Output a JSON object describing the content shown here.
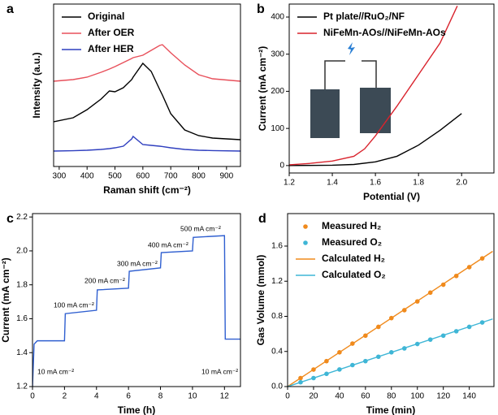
{
  "chart_data": [
    {
      "type": "line",
      "panel_label": "a",
      "x_label": "Raman shift (cm⁻²)",
      "y_label": "Intensity (a.u.)",
      "legend": "upper left",
      "xlim": [
        280,
        950
      ],
      "xticks": [
        300,
        400,
        500,
        600,
        700,
        800,
        900
      ],
      "ylim": [
        0,
        100
      ],
      "x": [
        280,
        350,
        400,
        450,
        480,
        500,
        530,
        560,
        565,
        600,
        630,
        660,
        670,
        700,
        750,
        800,
        850,
        950
      ],
      "series": [
        {
          "name": "Original",
          "color": "#000000",
          "values": [
            27.5,
            30,
            35,
            41.5,
            46.5,
            46,
            48.5,
            53.5,
            55,
            63.5,
            58.5,
            47.5,
            44,
            32.5,
            22.5,
            19,
            17.5,
            16.5
          ]
        },
        {
          "name": "After OER",
          "color": "#e8505b",
          "values": [
            52.5,
            53.5,
            55,
            58,
            60,
            61.5,
            64,
            66.5,
            67,
            68.5,
            71.5,
            74.5,
            75,
            70,
            62.5,
            56.5,
            54,
            52.5
          ]
        },
        {
          "name": "After HER",
          "color": "#2f3fbf",
          "values": [
            9.5,
            9.7,
            10,
            10.5,
            11,
            11.5,
            12.5,
            17,
            18.5,
            13.5,
            13,
            12.5,
            12.3,
            11.5,
            10.5,
            10,
            9.8,
            9.5
          ]
        }
      ]
    },
    {
      "type": "line",
      "panel_label": "b",
      "x_label": "Potential (V)",
      "y_label": "Current (mA cm⁻²)",
      "legend": "upper left",
      "xlim": [
        1.2,
        2.15
      ],
      "xticks": [
        1.2,
        1.4,
        1.6,
        1.8,
        {
          "value": 2,
          "label": "2.0"
        }
      ],
      "ylim": [
        -20,
        435
      ],
      "yticks": [
        0,
        100,
        200,
        300,
        400
      ],
      "series": [
        {
          "name": "Pt plate//RuO₂/NF",
          "color": "#000000",
          "x": [
            1.2,
            1.4,
            1.5,
            1.6,
            1.7,
            1.8,
            1.9,
            2.0
          ],
          "values": [
            0,
            1,
            3,
            10,
            25,
            55,
            95,
            140
          ]
        },
        {
          "name": "NiFeMn-AOs//NiFeMn-AOs",
          "color": "#d9232d",
          "x": [
            1.2,
            1.3,
            1.4,
            1.5,
            1.55,
            1.6,
            1.7,
            1.8,
            1.9,
            1.98
          ],
          "values": [
            2,
            6,
            12,
            25,
            45,
            80,
            160,
            245,
            330,
            430
          ]
        }
      ]
    },
    {
      "type": "line",
      "panel_label": "c",
      "x_label": "Time (h)",
      "y_label": "Current (mA cm⁻²)",
      "xlim": [
        0,
        13
      ],
      "xticks": [
        0,
        2,
        4,
        6,
        8,
        10,
        12
      ],
      "ylim": [
        1.2,
        2.22
      ],
      "yticks": [
        1.2,
        1.4,
        1.6,
        1.8,
        {
          "value": 2,
          "label": "2.0"
        },
        2.2
      ],
      "x": [
        0,
        0.1,
        0.3,
        2,
        2.05,
        4,
        4.05,
        6,
        6.05,
        8,
        8.05,
        10,
        10.05,
        12,
        12.05,
        13
      ],
      "series": [
        {
          "color": "#2f5fd0",
          "values": [
            1.2,
            1.45,
            1.47,
            1.47,
            1.63,
            1.65,
            1.77,
            1.78,
            1.88,
            1.9,
            1.99,
            2.0,
            2.08,
            2.09,
            1.48,
            1.48
          ]
        }
      ],
      "annotations": [
        "10 mA cm⁻²",
        "100 mA cm⁻²",
        "200 mA cm⁻²",
        "300 mA cm⁻²",
        "400 mA cm⁻²",
        "500 mA cm⁻²",
        "10 mA cm⁻²"
      ]
    },
    {
      "type": "line",
      "panel_label": "d",
      "x_label": "Time (min)",
      "y_label": "Gas Volume (mmol)",
      "legend": "upper left",
      "xlim": [
        0,
        159
      ],
      "xticks": [
        0,
        20,
        40,
        60,
        80,
        100,
        120,
        140
      ],
      "ylim": [
        0,
        1.97
      ],
      "yticks": [
        {
          "value": 0,
          "label": "0.0"
        },
        0.4,
        0.8,
        1.2,
        1.6
      ],
      "series": [
        {
          "name": "Measured H₂",
          "color": "#f08a1c",
          "style": "marker",
          "x": [
            10,
            20,
            30,
            40,
            50,
            60,
            70,
            80,
            90,
            100,
            110,
            120,
            130,
            140,
            150
          ],
          "values": [
            0.097,
            0.194,
            0.29,
            0.39,
            0.49,
            0.58,
            0.68,
            0.78,
            0.87,
            0.97,
            1.07,
            1.16,
            1.26,
            1.36,
            1.46
          ]
        },
        {
          "name": "Measured O₂",
          "color": "#3fb6d6",
          "style": "marker",
          "x": [
            10,
            20,
            30,
            40,
            50,
            60,
            70,
            80,
            90,
            100,
            110,
            120,
            130,
            140,
            150
          ],
          "values": [
            0.049,
            0.097,
            0.145,
            0.195,
            0.245,
            0.29,
            0.34,
            0.39,
            0.435,
            0.485,
            0.535,
            0.58,
            0.63,
            0.68,
            0.73
          ]
        },
        {
          "name": "Calculated H₂",
          "color": "#f08a1c",
          "style": "line",
          "x": [
            0,
            158
          ],
          "values": [
            0,
            1.54
          ]
        },
        {
          "name": "Calculated O₂",
          "color": "#3fb6d6",
          "style": "line",
          "x": [
            0,
            158
          ],
          "values": [
            0,
            0.77
          ]
        }
      ]
    }
  ]
}
